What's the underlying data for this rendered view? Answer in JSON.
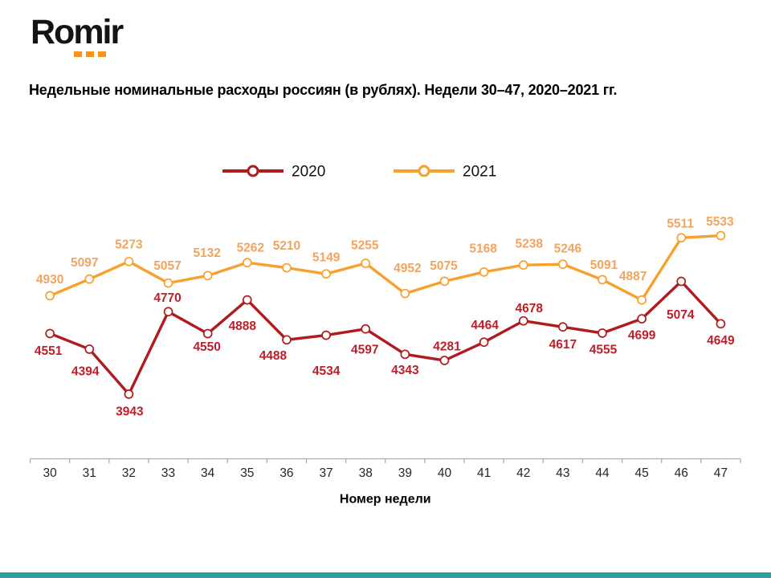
{
  "logo": {
    "text": "Romir",
    "dot_color": "#F7941D",
    "dot_count": 3
  },
  "title": "Недельные номинальные расходы россиян (в рублях). Недели 30–47, 2020–2021 гг.",
  "footer": {
    "bar_color": "#2E9EA0"
  },
  "chart_data": {
    "type": "line",
    "title": "Недельные номинальные расходы россиян (в рублях). Недели 30–47, 2020–2021 гг.",
    "categories": [
      30,
      31,
      32,
      33,
      34,
      35,
      36,
      37,
      38,
      39,
      40,
      41,
      42,
      43,
      44,
      45,
      46,
      47
    ],
    "xlabel": "Номер недели",
    "ylabel": "",
    "grid": false,
    "legend_position": "top",
    "marker": "open-circle",
    "axis_color": "#ADADAD",
    "tick_label_color": "#262626",
    "legend_text_color": "#111111",
    "series": [
      {
        "name": "2020",
        "color": "#AF1B1E",
        "label_color": "#BE1E28",
        "values": [
          4551,
          4394,
          3943,
          4770,
          4550,
          4888,
          4488,
          4534,
          4597,
          4343,
          4281,
          4464,
          4678,
          4617,
          4555,
          4699,
          5074,
          4649
        ],
        "label_offsets": [
          [
            -2,
            21
          ],
          [
            -5,
            27
          ],
          [
            1,
            21
          ],
          [
            -1,
            -18
          ],
          [
            -1,
            16
          ],
          [
            -6,
            32
          ],
          [
            -17,
            19
          ],
          [
            0,
            44
          ],
          [
            -1,
            25
          ],
          [
            0,
            19
          ],
          [
            3,
            -18
          ],
          [
            1,
            -22
          ],
          [
            7,
            -16
          ],
          [
            0,
            21
          ],
          [
            1,
            20
          ],
          [
            0,
            20
          ],
          [
            -1,
            41
          ],
          [
            0,
            20
          ]
        ]
      },
      {
        "name": "2021",
        "color": "#F7A02E",
        "label_color": "#F1A45F",
        "values": [
          4930,
          5097,
          5273,
          5057,
          5132,
          5262,
          5210,
          5149,
          5255,
          4952,
          5075,
          5168,
          5238,
          5246,
          5091,
          4887,
          5511,
          5533
        ],
        "label_offsets": [
          [
            0,
            -21
          ],
          [
            -6,
            -21
          ],
          [
            0,
            -22
          ],
          [
            -1,
            -22
          ],
          [
            -1,
            -29
          ],
          [
            4,
            -19
          ],
          [
            0,
            -28
          ],
          [
            0,
            -21
          ],
          [
            -1,
            -23
          ],
          [
            3,
            -32
          ],
          [
            -1,
            -20
          ],
          [
            -1,
            -30
          ],
          [
            7,
            -27
          ],
          [
            6,
            -20
          ],
          [
            2,
            -19
          ],
          [
            -11,
            -30
          ],
          [
            -1,
            -18
          ],
          [
            -1,
            -18
          ]
        ]
      }
    ]
  }
}
